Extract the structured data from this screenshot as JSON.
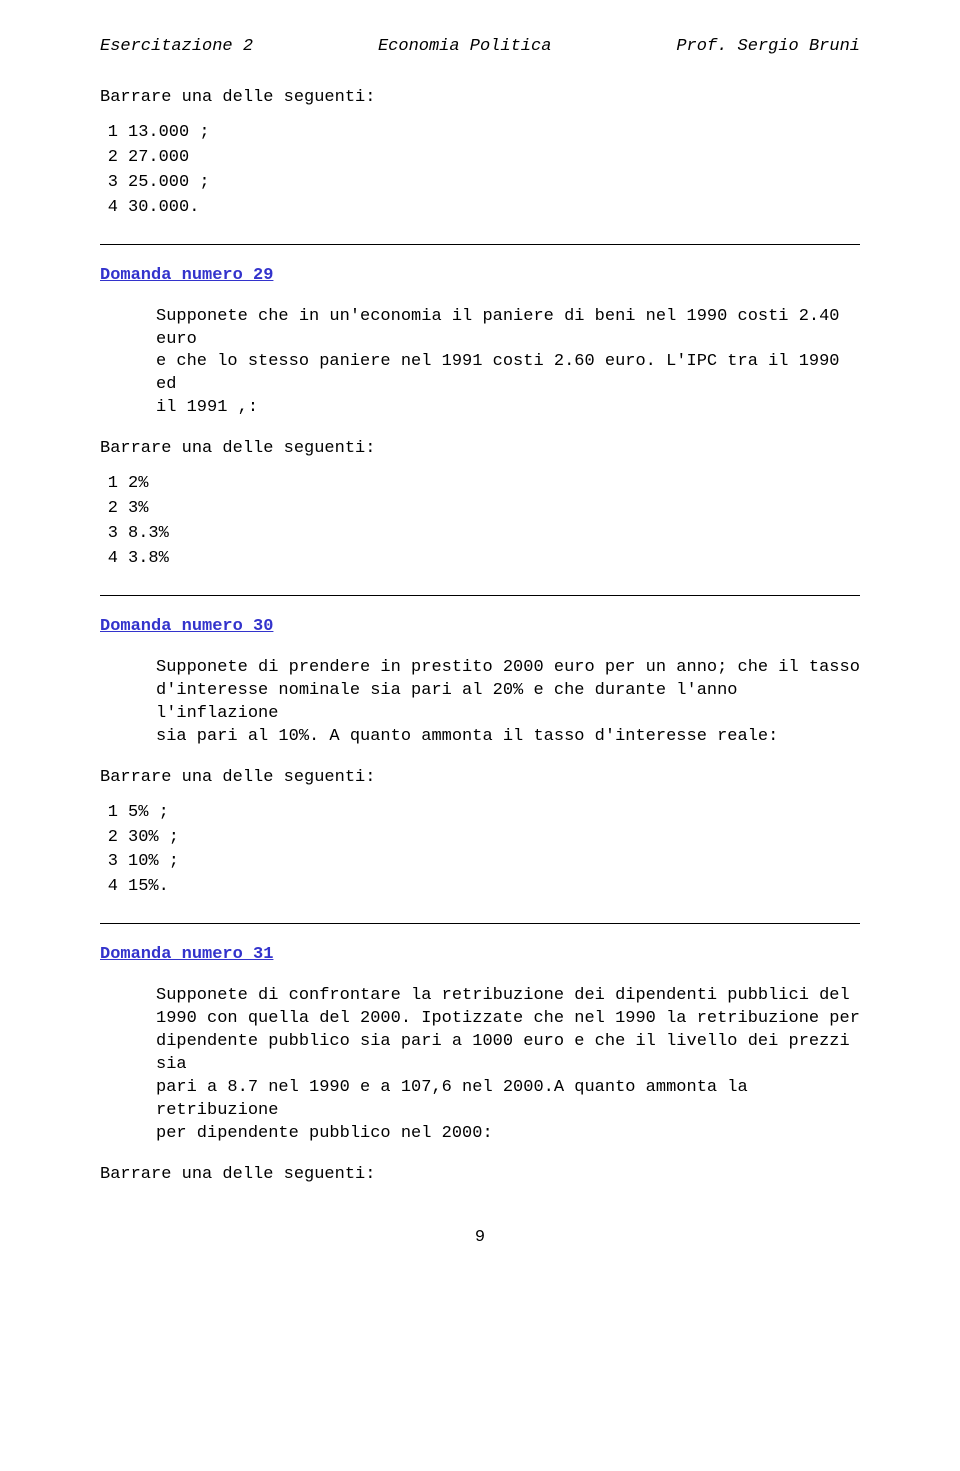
{
  "colors": {
    "text": "#000000",
    "link": "#3333cc",
    "background": "#ffffff",
    "rule": "#000000"
  },
  "typography": {
    "font_family": "Courier New",
    "base_fontsize_pt": 12,
    "italic_header": true,
    "title_bold": true,
    "title_underline": true
  },
  "header": {
    "left": "Esercitazione 2",
    "center": "Economia Politica",
    "right": "Prof. Sergio Bruni"
  },
  "intro_barrare": "Barrare una delle seguenti:",
  "intro_options": [
    {
      "n": "1",
      "v": "13.000 ;"
    },
    {
      "n": "2",
      "v": "27.000"
    },
    {
      "n": "3",
      "v": "25.000 ;"
    },
    {
      "n": "4",
      "v": "30.000."
    }
  ],
  "q29": {
    "title": "Domanda numero 29",
    "text": "Supponete che in un'economia il paniere di beni nel 1990 costi 2.40 euro\ne che lo stesso paniere nel 1991 costi 2.60 euro. L'IPC tra il 1990 ed\nil 1991 ,:",
    "barrare": "Barrare una delle seguenti:",
    "options": [
      {
        "n": "1",
        "v": "2%"
      },
      {
        "n": "2",
        "v": "3%"
      },
      {
        "n": "3",
        "v": "8.3%"
      },
      {
        "n": "4",
        "v": "3.8%"
      }
    ]
  },
  "q30": {
    "title": "Domanda numero 30",
    "text": "Supponete di prendere in prestito 2000 euro per un anno; che il tasso\nd'interesse nominale sia pari al 20% e che durante l'anno l'inflazione\nsia pari al 10%. A quanto ammonta il tasso d'interesse reale:",
    "barrare": "Barrare una delle seguenti:",
    "options": [
      {
        "n": "1",
        "v": "5% ;"
      },
      {
        "n": "2",
        "v": "30% ;"
      },
      {
        "n": "3",
        "v": "10% ;"
      },
      {
        "n": "4",
        "v": "15%."
      }
    ]
  },
  "q31": {
    "title": "Domanda numero 31",
    "text": "Supponete di confrontare la retribuzione dei dipendenti pubblici del\n1990 con quella del 2000. Ipotizzate che nel 1990 la retribuzione per\ndipendente pubblico sia pari a 1000 euro e che il livello dei prezzi sia\npari a 8.7 nel 1990 e a 107,6 nel 2000.A quanto ammonta la retribuzione\nper dipendente pubblico nel 2000:",
    "barrare": "Barrare una delle seguenti:"
  },
  "page_number": "9"
}
